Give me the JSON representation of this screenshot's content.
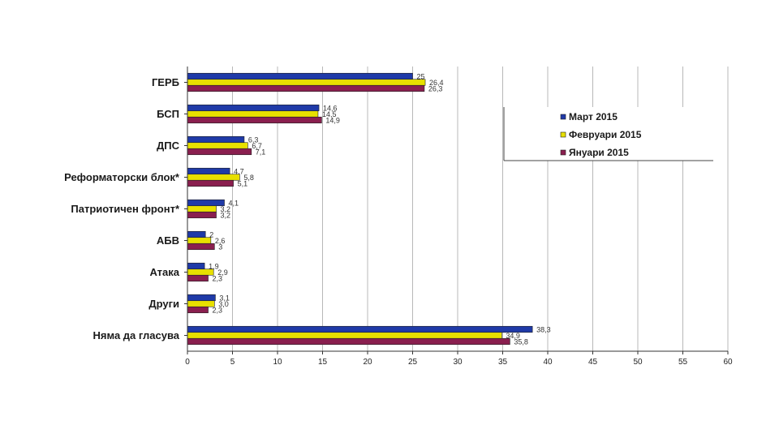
{
  "chart_data": {
    "type": "bar",
    "orientation": "horizontal",
    "categories": [
      "ГЕРБ",
      "БСП",
      "ДПС",
      "Реформаторски блок*",
      "Патриотичен фронт*",
      "АБВ",
      "Атака",
      "Други",
      "Няма да гласува"
    ],
    "series": [
      {
        "name": "Март 2015",
        "color": "#1f3aa8",
        "values": [
          25,
          14.6,
          6.3,
          4.7,
          4.1,
          2,
          1.9,
          3.1,
          38.3
        ],
        "labels": [
          "25",
          "14,6",
          "6,3",
          "4,7",
          "4,1",
          "2",
          "1,9",
          "3,1",
          "38,3"
        ]
      },
      {
        "name": "Февруари 2015",
        "color": "#e8e000",
        "values": [
          26.4,
          14.5,
          6.7,
          5.8,
          3.2,
          2.6,
          2.9,
          3.0,
          34.9
        ],
        "labels": [
          "26,4",
          "14,5",
          "6,7",
          "5,8",
          "3,2",
          "2,6",
          "2,9",
          "3,0",
          "34,9"
        ]
      },
      {
        "name": "Януари 2015",
        "color": "#8a1f4f",
        "values": [
          26.3,
          14.9,
          7.1,
          5.1,
          3.2,
          3,
          2.3,
          2.3,
          35.8
        ],
        "labels": [
          "26,3",
          "14,9",
          "7,1",
          "5,1",
          "3,2",
          "3",
          "2,3",
          "2,3",
          "35,8"
        ]
      }
    ],
    "x_ticks": [
      "0",
      "5",
      "10",
      "15",
      "20",
      "25",
      "30",
      "35",
      "40",
      "45",
      "50",
      "55",
      "60"
    ],
    "xlim": [
      0,
      60
    ],
    "grid": "vertical",
    "legend_position": "right"
  }
}
